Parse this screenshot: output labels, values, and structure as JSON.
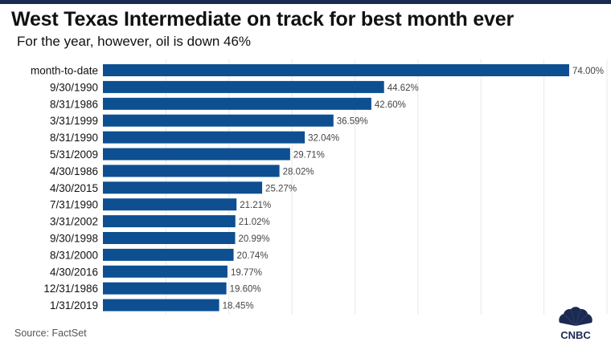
{
  "header": {
    "title": "West Texas Intermediate on track for best month ever",
    "subtitle": "For the year, however, oil is down 46%"
  },
  "footer": {
    "source": "Source: FactSet",
    "logo_text": "CNBC"
  },
  "colors": {
    "bar": "#0d4f91",
    "gridline": "#e8e8e8",
    "top_bar": "#1b2a52"
  },
  "chart_data": {
    "type": "bar",
    "orientation": "horizontal",
    "categories": [
      "month-to-date",
      "9/30/1990",
      "8/31/1986",
      "3/31/1999",
      "8/31/1990",
      "5/31/2009",
      "4/30/1986",
      "4/30/2015",
      "7/31/1990",
      "3/31/2002",
      "9/30/1998",
      "8/31/2000",
      "4/30/2016",
      "12/31/1986",
      "1/31/2019"
    ],
    "values": [
      74.0,
      44.62,
      42.6,
      36.59,
      32.04,
      29.71,
      28.02,
      25.27,
      21.21,
      21.02,
      20.99,
      20.74,
      19.77,
      19.6,
      18.45
    ],
    "value_labels": [
      "74.00%",
      "44.62%",
      "42.60%",
      "36.59%",
      "32.04%",
      "29.71%",
      "28.02%",
      "25.27%",
      "21.21%",
      "21.02%",
      "20.99%",
      "20.74%",
      "19.77%",
      "19.60%",
      "18.45%"
    ],
    "xlim": [
      0,
      80
    ],
    "grid": true,
    "title": "West Texas Intermediate on track for best month ever",
    "subtitle": "For the year, however, oil is down 46%"
  }
}
